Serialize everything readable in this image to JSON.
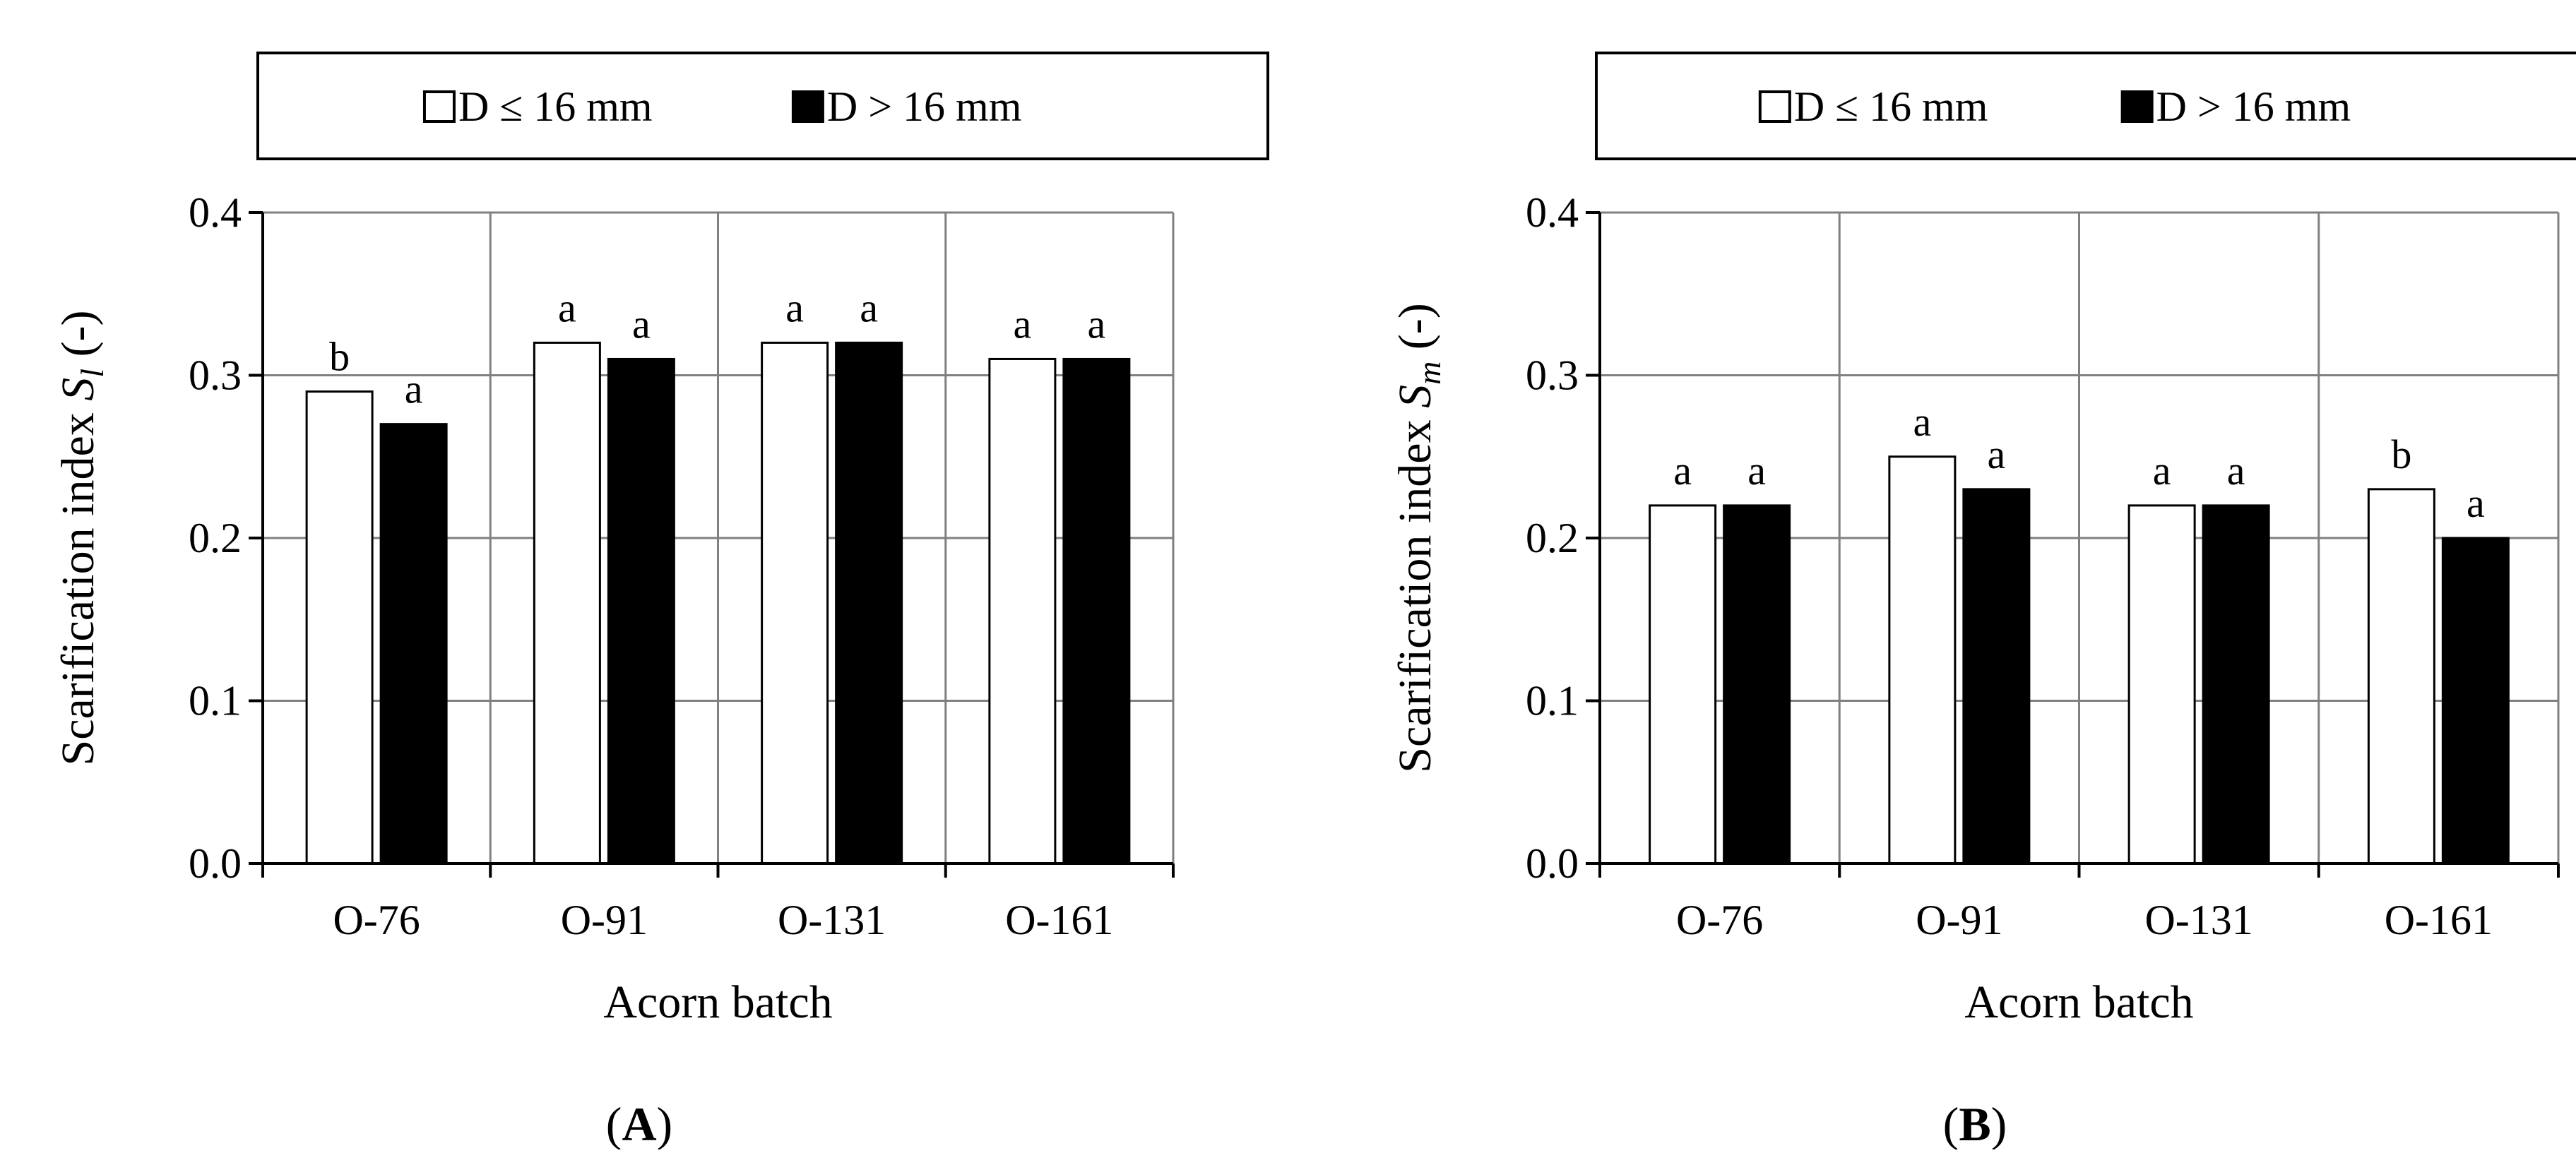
{
  "chart_data": [
    {
      "type": "bar",
      "panel_label": "A",
      "xlabel": "Acorn batch",
      "ylabel_prefix": "Scarification index ",
      "ylabel_symbol": "S",
      "ylabel_subscript": "l",
      "ylabel_suffix": " (-)",
      "ylim": [
        0,
        0.4
      ],
      "yticks": [
        "0.0",
        "0.1",
        "0.2",
        "0.3",
        "0.4"
      ],
      "categories": [
        "O-76",
        "O-91",
        "O-131",
        "O-161"
      ],
      "series": [
        {
          "name": "D ≤ 16 mm",
          "color": "#ffffff",
          "values": [
            0.29,
            0.32,
            0.32,
            0.31
          ],
          "letters": [
            "b",
            "a",
            "a",
            "a"
          ]
        },
        {
          "name": "D > 16 mm",
          "color": "#000000",
          "values": [
            0.27,
            0.31,
            0.32,
            0.31
          ],
          "letters": [
            "a",
            "a",
            "a",
            "a"
          ]
        }
      ]
    },
    {
      "type": "bar",
      "panel_label": "B",
      "xlabel": "Acorn batch",
      "ylabel_prefix": "Scarification index ",
      "ylabel_symbol": "S",
      "ylabel_subscript": "m",
      "ylabel_suffix": " (-)",
      "ylim": [
        0,
        0.4
      ],
      "yticks": [
        "0.0",
        "0.1",
        "0.2",
        "0.3",
        "0.4"
      ],
      "categories": [
        "O-76",
        "O-91",
        "O-131",
        "O-161"
      ],
      "series": [
        {
          "name": "D ≤ 16 mm",
          "color": "#ffffff",
          "values": [
            0.22,
            0.25,
            0.22,
            0.23
          ],
          "letters": [
            "a",
            "a",
            "a",
            "b"
          ]
        },
        {
          "name": "D > 16 mm",
          "color": "#000000",
          "values": [
            0.22,
            0.23,
            0.22,
            0.2
          ],
          "letters": [
            "a",
            "a",
            "a",
            "a"
          ]
        }
      ]
    }
  ]
}
